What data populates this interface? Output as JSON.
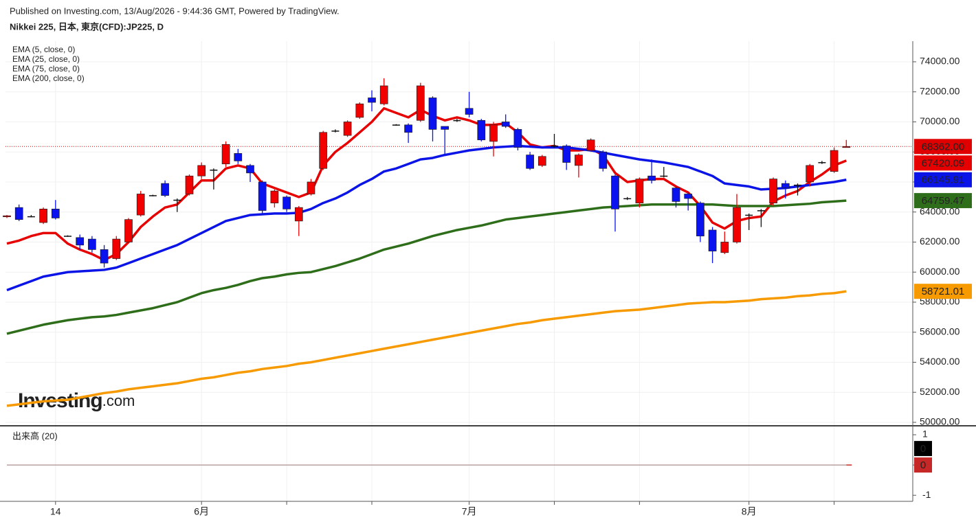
{
  "chart_data": {
    "type": "candlestick",
    "source": "Published on Investing.com, 13/Aug/2026 - 9:44:36 GMT, Powered by TradingView.",
    "title": "Nikkei 225, 日本, 東京(CFD):JP225, D",
    "categories": [
      null,
      null,
      null,
      null,
      "14",
      null,
      null,
      null,
      null,
      null,
      null,
      null,
      null,
      null,
      null,
      null,
      "6月",
      null,
      null,
      null,
      null,
      null,
      null,
      null,
      null,
      null,
      null,
      null,
      null,
      null,
      null,
      null,
      null,
      null,
      null,
      null,
      null,
      null,
      "7月",
      null,
      null,
      null,
      null,
      null,
      null,
      null,
      null,
      null,
      null,
      null,
      null,
      null,
      null,
      null,
      null,
      null,
      null,
      null,
      null,
      null,
      null,
      "8月",
      null,
      null,
      null,
      null,
      null,
      null,
      null,
      null
    ],
    "open": [
      63700,
      64300,
      63700,
      63300,
      64200,
      62400,
      62300,
      62200,
      61500,
      60900,
      62000,
      63800,
      65100,
      65900,
      64800,
      65200,
      66400,
      66800,
      67200,
      67900,
      67100,
      66000,
      64600,
      65000,
      63400,
      65200,
      66900,
      69400,
      69100,
      70300,
      71600,
      71200,
      69800,
      69800,
      70100,
      71600,
      69700,
      70100,
      70900,
      70100,
      68700,
      70000,
      69500,
      67800,
      67100,
      68400,
      68400,
      67100,
      68100,
      68000,
      66400,
      64900,
      64600,
      66400,
      66400,
      65600,
      65200,
      64600,
      62800,
      61300,
      62000,
      63800,
      64100,
      64600,
      65900,
      65800,
      66000,
      67300,
      66700,
      68300
    ],
    "high": [
      63800,
      64500,
      63800,
      64300,
      64800,
      62450,
      62500,
      62400,
      61800,
      62400,
      63600,
      65400,
      65150,
      66100,
      64900,
      66500,
      67300,
      66900,
      68700,
      68200,
      67200,
      66100,
      65500,
      65100,
      64400,
      66200,
      69400,
      69500,
      70100,
      71300,
      72100,
      72900,
      69850,
      69900,
      72600,
      71700,
      69700,
      70200,
      72000,
      70200,
      70000,
      70500,
      69600,
      68000,
      67800,
      69200,
      68500,
      67900,
      68900,
      68100,
      66500,
      65000,
      66300,
      67500,
      67000,
      65700,
      65300,
      64700,
      63000,
      62700,
      65200,
      63900,
      64200,
      66300,
      66100,
      65900,
      67200,
      67400,
      68300,
      68800
    ],
    "low": [
      63600,
      63400,
      63650,
      63200,
      63500,
      62350,
      61500,
      61300,
      60300,
      60800,
      61900,
      63700,
      65050,
      65000,
      64000,
      65100,
      66200,
      65500,
      67000,
      67200,
      66000,
      63900,
      64300,
      64000,
      62400,
      65100,
      66800,
      69300,
      69000,
      70200,
      70700,
      71100,
      69750,
      68600,
      70000,
      68700,
      67800,
      70000,
      70300,
      68700,
      67700,
      69600,
      68100,
      66800,
      67000,
      68300,
      66800,
      66300,
      68000,
      66700,
      62700,
      64800,
      64300,
      65900,
      66300,
      64300,
      64100,
      62000,
      60600,
      61200,
      61900,
      62800,
      63000,
      64400,
      64900,
      65100,
      65700,
      67200,
      66600,
      68300
    ],
    "close": [
      63750,
      63500,
      63720,
      64200,
      63600,
      62420,
      61800,
      61500,
      60600,
      62200,
      63500,
      65200,
      65120,
      65100,
      64820,
      66400,
      67100,
      66820,
      68500,
      67400,
      66600,
      64100,
      65400,
      64200,
      64300,
      66000,
      69300,
      69420,
      70000,
      71200,
      71300,
      72400,
      69820,
      69300,
      72400,
      69500,
      69500,
      70120,
      70500,
      68800,
      69800,
      69700,
      68300,
      66900,
      67700,
      68420,
      67300,
      67800,
      68800,
      66900,
      64200,
      64920,
      66200,
      66100,
      66420,
      64700,
      64900,
      62400,
      61400,
      62000,
      64300,
      63820,
      64120,
      66200,
      65600,
      65820,
      67100,
      67320,
      68100,
      68362
    ],
    "up_color": "#f20000",
    "down_color": "#0a12f0",
    "series": [
      {
        "name": "EMA (5, close, 0)",
        "color": "#e60000",
        "values": [
          61900,
          62100,
          62400,
          62600,
          62600,
          61900,
          61500,
          61200,
          60800,
          61200,
          62000,
          63000,
          63700,
          64300,
          64500,
          65300,
          66100,
          66100,
          66900,
          67100,
          66900,
          65900,
          65600,
          65300,
          65000,
          65300,
          67100,
          68000,
          68600,
          69300,
          70000,
          70900,
          70600,
          70300,
          70800,
          70400,
          70100,
          70300,
          70100,
          69800,
          69800,
          69900,
          69300,
          68500,
          68300,
          68400,
          68100,
          68100,
          68200,
          67800,
          66600,
          66000,
          66100,
          66200,
          66200,
          65700,
          65300,
          64400,
          63300,
          62900,
          63400,
          63600,
          63700,
          64700,
          65100,
          65400,
          66000,
          66500,
          67100,
          67420.09
        ]
      },
      {
        "name": "EMA (25, close, 0)",
        "color": "#0a14e6",
        "values": [
          58800,
          59100,
          59400,
          59700,
          59850,
          60000,
          60050,
          60100,
          60150,
          60300,
          60600,
          60900,
          61200,
          61500,
          61800,
          62200,
          62600,
          63000,
          63400,
          63600,
          63800,
          63850,
          63900,
          63900,
          63950,
          64200,
          64600,
          64900,
          65300,
          65800,
          66200,
          66700,
          66900,
          67200,
          67500,
          67600,
          67800,
          67950,
          68100,
          68200,
          68300,
          68350,
          68400,
          68350,
          68300,
          68300,
          68300,
          68200,
          68100,
          67950,
          67800,
          67650,
          67500,
          67400,
          67300,
          67150,
          67000,
          66700,
          66400,
          65900,
          65800,
          65700,
          65500,
          65550,
          65600,
          65700,
          65800,
          65900,
          66000,
          66145.91
        ]
      },
      {
        "name": "EMA (75, close, 0)",
        "color": "#2e6e1a",
        "values": [
          55900,
          56100,
          56300,
          56500,
          56650,
          56800,
          56900,
          57000,
          57050,
          57150,
          57300,
          57450,
          57600,
          57800,
          58000,
          58300,
          58600,
          58800,
          58950,
          59150,
          59400,
          59600,
          59700,
          59850,
          59950,
          60000,
          60200,
          60400,
          60650,
          60900,
          61200,
          61500,
          61700,
          61900,
          62150,
          62400,
          62600,
          62800,
          62950,
          63100,
          63300,
          63500,
          63600,
          63700,
          63800,
          63900,
          64000,
          64100,
          64200,
          64300,
          64350,
          64400,
          64450,
          64500,
          64500,
          64500,
          64500,
          64500,
          64500,
          64450,
          64400,
          64400,
          64400,
          64400,
          64450,
          64500,
          64550,
          64650,
          64700,
          64759.47
        ]
      },
      {
        "name": "EMA (200, close, 0)",
        "color": "#f79a00",
        "values": [
          51100,
          51200,
          51300,
          51400,
          51450,
          51500,
          51650,
          51800,
          51950,
          52050,
          52200,
          52300,
          52400,
          52500,
          52600,
          52750,
          52900,
          53000,
          53150,
          53300,
          53400,
          53550,
          53650,
          53750,
          53900,
          54000,
          54150,
          54300,
          54450,
          54600,
          54750,
          54900,
          55050,
          55200,
          55350,
          55500,
          55650,
          55800,
          55950,
          56100,
          56250,
          56400,
          56550,
          56650,
          56800,
          56900,
          57000,
          57100,
          57200,
          57300,
          57400,
          57450,
          57500,
          57600,
          57700,
          57800,
          57900,
          57950,
          58000,
          58000,
          58050,
          58100,
          58200,
          58250,
          58300,
          58400,
          58450,
          58550,
          58600,
          58721.01
        ]
      }
    ],
    "price_line": {
      "value": 68362,
      "label": "68362.00",
      "color": "#e00000"
    },
    "ylim": [
      49770,
      75370
    ],
    "yticks": [
      {
        "value": 50000,
        "label": "50000.00"
      },
      {
        "value": 52000,
        "label": "52000.00"
      },
      {
        "value": 54000,
        "label": "54000.00"
      },
      {
        "value": 56000,
        "label": "56000.00"
      },
      {
        "value": 58000,
        "label": "58000.00"
      },
      {
        "value": 60000,
        "label": "60000.00"
      },
      {
        "value": 62000,
        "label": "62000.00"
      },
      {
        "value": 64000,
        "label": "64000.00"
      },
      {
        "value": 66000,
        "label": "66000.00"
      },
      {
        "value": 68000,
        "label": "68000.00"
      },
      {
        "value": 70000,
        "label": "70000.00"
      },
      {
        "value": 72000,
        "label": "72000.00"
      },
      {
        "value": 74000,
        "label": "74000.00"
      }
    ],
    "grid": true,
    "watermark": {
      "brand": "Investing",
      "suffix": ".com"
    },
    "volume": {
      "title": "出来高 (20)",
      "values": [
        0,
        0,
        0,
        0,
        0,
        0,
        0,
        0,
        0,
        0,
        0,
        0,
        0,
        0,
        0,
        0,
        0,
        0,
        0,
        0,
        0,
        0,
        0,
        0,
        0,
        0,
        0,
        0,
        0,
        0,
        0,
        0,
        0,
        0,
        0,
        0,
        0,
        0,
        0,
        0,
        0,
        0,
        0,
        0,
        0,
        0,
        0,
        0,
        0,
        0,
        0,
        0,
        0,
        0,
        0,
        0,
        0,
        0,
        0,
        0,
        0,
        0,
        0,
        0,
        0,
        0,
        0,
        0,
        0,
        0
      ],
      "ma_value": 0,
      "ma_color": "#c62828",
      "ylim": [
        -1.2,
        1.25
      ],
      "yticks": [
        1,
        0,
        -1
      ]
    }
  }
}
